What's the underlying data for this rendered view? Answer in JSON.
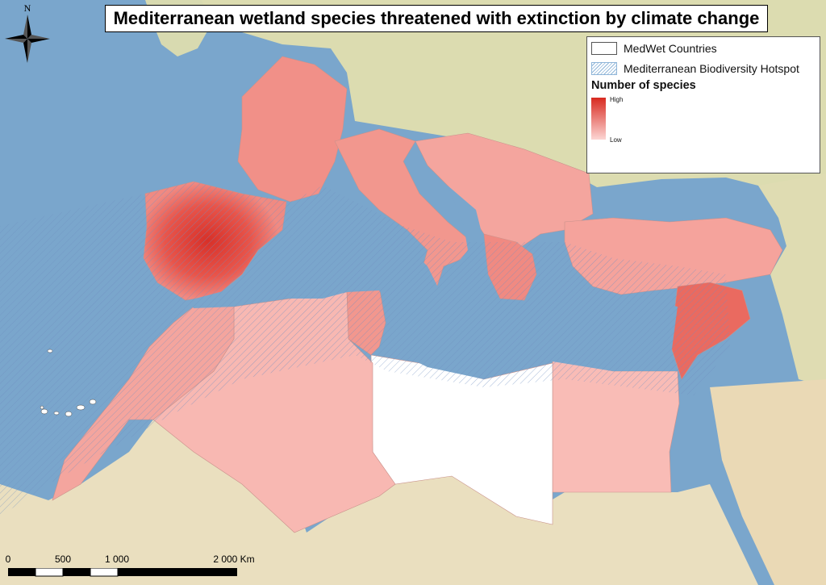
{
  "title": "Mediterranean wetland species threatened with extinction by climate change",
  "legend": {
    "items": [
      {
        "label": "MedWet Countries",
        "icon": "white-fill-swatch"
      },
      {
        "label": "Mediterranean Biodiversity Hotspot",
        "icon": "blue-hatch-swatch"
      }
    ],
    "heading": "Number of species",
    "ramp_high": "High",
    "ramp_low": "Low",
    "ramp_high_color": "#d82a20",
    "ramp_low_color": "#fcd6d4"
  },
  "north_label": "N",
  "scale": {
    "labels": [
      "0",
      "500",
      "1 000",
      "2 000 Km"
    ]
  },
  "colors": {
    "sea": "#7aa6cc",
    "land": "#e8e2c8",
    "species_low": "#f7b5b0",
    "species_mid": "#f28c82",
    "species_high": "#d82a20",
    "medwet_white": "#ffffff",
    "hotspot_hatch": "#8fb5d8"
  }
}
